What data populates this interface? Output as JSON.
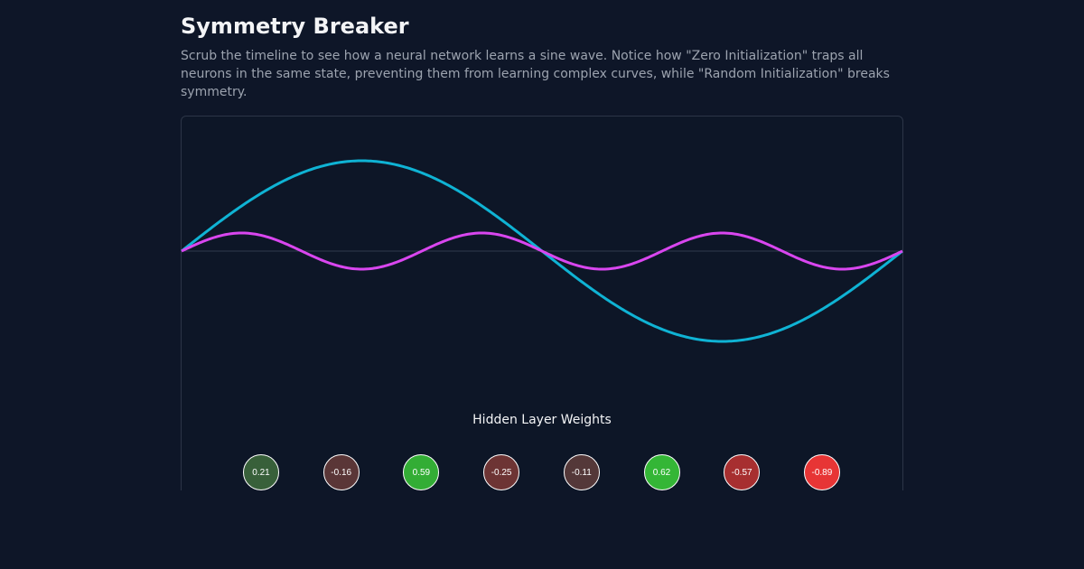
{
  "header": {
    "title": "Symmetry Breaker",
    "description": "Scrub the timeline to see how a neural network learns a sine wave. Notice how \"Zero Initialization\" traps all neurons in the same state, preventing them from learning complex curves, while \"Random Initialization\" breaks symmetry."
  },
  "chart_data": {
    "type": "line",
    "title": "",
    "xlabel": "",
    "ylabel": "",
    "x_range": [
      0,
      6.2832
    ],
    "y_range": [
      -2,
      2
    ],
    "grid": false,
    "zero_line": true,
    "series": [
      {
        "color": "#0fb3d4",
        "function": "sin(x)",
        "amplitude": 1,
        "frequency": 1
      },
      {
        "color": "#d946ef",
        "function": "0.2*sin(3x)",
        "amplitude": 0.2,
        "frequency": 3
      }
    ]
  },
  "weights": {
    "label": "Hidden Layer Weights",
    "items": [
      {
        "text": "0.21",
        "value": 0.21,
        "color": "#38603a"
      },
      {
        "text": "-0.16",
        "value": -0.16,
        "color": "#5a3637"
      },
      {
        "text": "0.59",
        "value": 0.59,
        "color": "#33ad35"
      },
      {
        "text": "-0.25",
        "value": -0.25,
        "color": "#6d3434"
      },
      {
        "text": "-0.11",
        "value": -0.11,
        "color": "#543839"
      },
      {
        "text": "0.62",
        "value": 0.62,
        "color": "#34b636"
      },
      {
        "text": "-0.57",
        "value": -0.57,
        "color": "#a72f30"
      },
      {
        "text": "-0.89",
        "value": -0.89,
        "color": "#e73535"
      }
    ]
  }
}
